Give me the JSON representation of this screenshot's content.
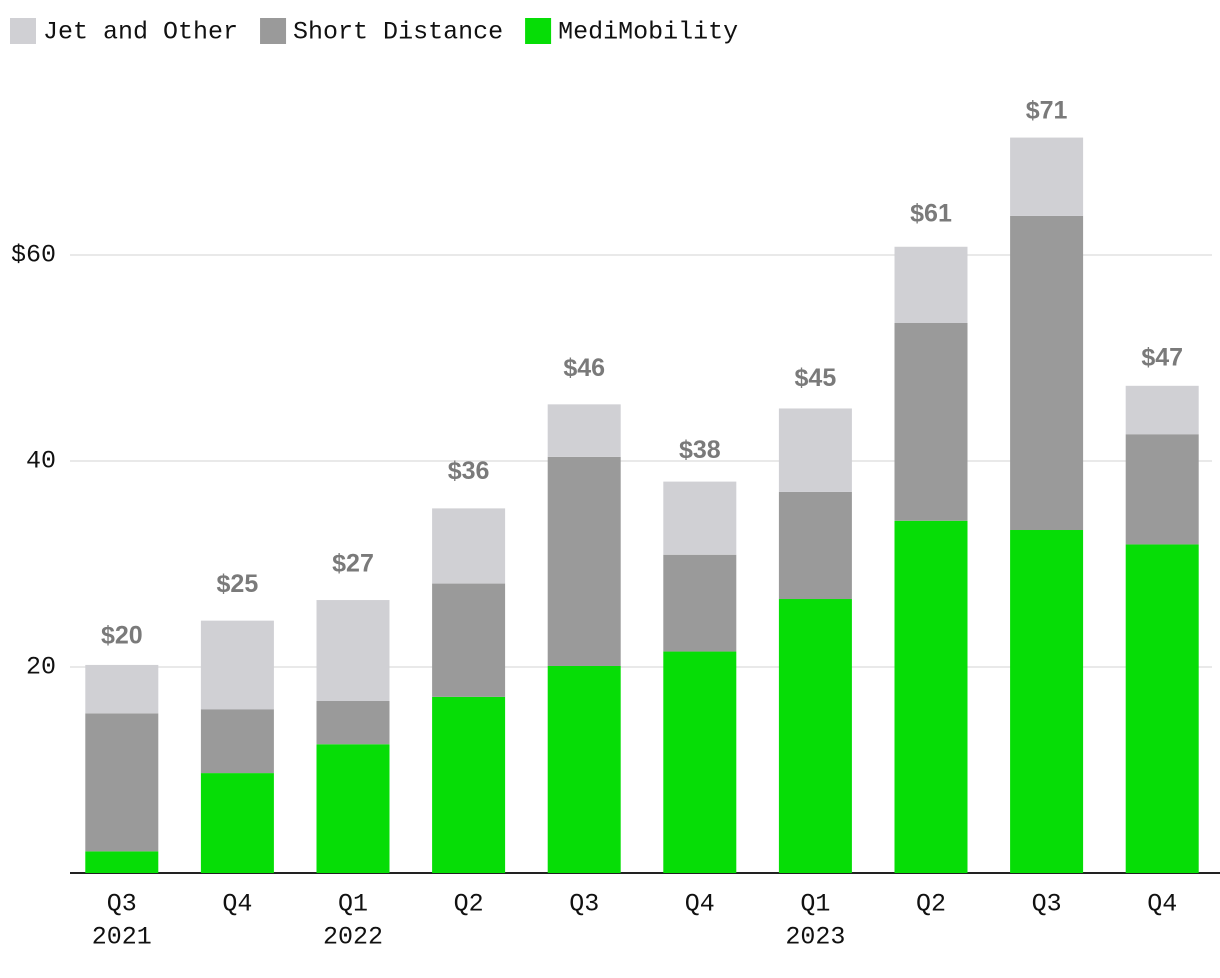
{
  "chart_data": {
    "type": "stacked_bar",
    "categories": [
      "Q3",
      "Q4",
      "Q1",
      "Q2",
      "Q3",
      "Q4",
      "Q1",
      "Q2",
      "Q3",
      "Q4"
    ],
    "category_groups": [
      "2021",
      null,
      "2022",
      null,
      null,
      null,
      "2023",
      null,
      null,
      null
    ],
    "series": [
      {
        "name": "MediMobility",
        "color": "#06dd06",
        "values": [
          2.1,
          9.7,
          12.5,
          17.1,
          20.1,
          21.5,
          26.6,
          34.2,
          33.3,
          31.9
        ]
      },
      {
        "name": "Short Distance",
        "color": "#9a9a9a",
        "values": [
          13.4,
          6.2,
          4.2,
          11.0,
          20.3,
          9.4,
          10.4,
          19.2,
          30.5,
          10.7
        ]
      },
      {
        "name": "Jet and Other",
        "color": "#d0d0d4",
        "values": [
          4.7,
          8.6,
          9.8,
          7.3,
          5.1,
          7.1,
          8.1,
          7.4,
          7.6,
          4.7
        ]
      }
    ],
    "totals": {
      "values": [
        20,
        25,
        27,
        36,
        46,
        38,
        45,
        61,
        71,
        47
      ],
      "value_labels": [
        "$20",
        "$25",
        "$27",
        "$36",
        "$46",
        "$38",
        "$45",
        "$61",
        "$71",
        "$47"
      ]
    },
    "legend_order": [
      2,
      1,
      0
    ],
    "ylim": [
      0,
      75
    ],
    "yticks": [
      20,
      40,
      {
        "value": 60,
        "label": "$60"
      }
    ],
    "grid": true
  }
}
